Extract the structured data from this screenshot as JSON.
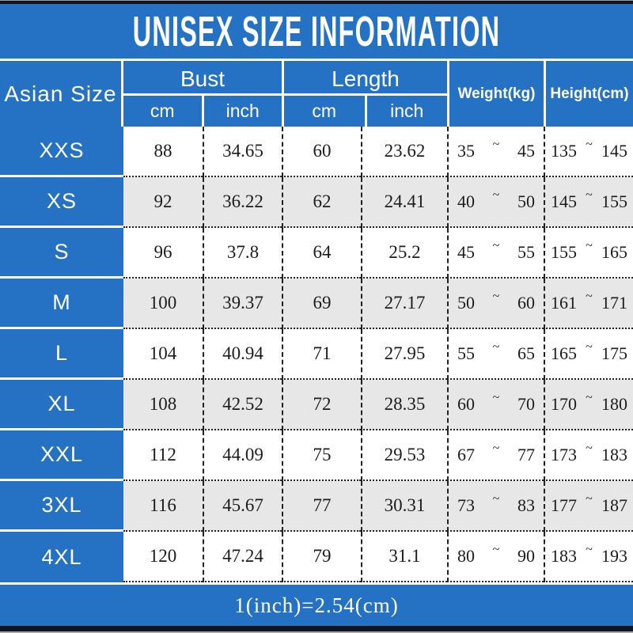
{
  "title": "UNISEX SIZE INFORMATION",
  "header": {
    "size_col": "Asian Size",
    "bust": "Bust",
    "length": "Length",
    "cm": "cm",
    "inch": "inch",
    "weight": "Weight(kg)",
    "height": "Height(cm)"
  },
  "tilde": "~",
  "footer": {
    "formula": "1(inch)=2.54(cm)"
  },
  "colors": {
    "accent_blue": "#2572c4",
    "alt_row_gray": "#e7e7e7",
    "row_white": "#ffffff",
    "divider_dark": "#222222",
    "text_white": "#ffffff",
    "edge_bar_dark": "#14141d"
  },
  "chart_data": {
    "type": "table",
    "title": "UNISEX SIZE INFORMATION",
    "columns": [
      "Asian Size",
      "Bust cm",
      "Bust inch",
      "Length cm",
      "Length inch",
      "Weight(kg)",
      "Height(cm)"
    ],
    "rows": [
      {
        "size": "XXS",
        "bust_cm": "88",
        "bust_inch": "34.65",
        "length_cm": "60",
        "length_inch": "23.62",
        "weight_min": "35",
        "weight_max": "45",
        "height_min": "135",
        "height_max": "145"
      },
      {
        "size": "XS",
        "bust_cm": "92",
        "bust_inch": "36.22",
        "length_cm": "62",
        "length_inch": "24.41",
        "weight_min": "40",
        "weight_max": "50",
        "height_min": "145",
        "height_max": "155"
      },
      {
        "size": "S",
        "bust_cm": "96",
        "bust_inch": "37.8",
        "length_cm": "64",
        "length_inch": "25.2",
        "weight_min": "45",
        "weight_max": "55",
        "height_min": "155",
        "height_max": "165"
      },
      {
        "size": "M",
        "bust_cm": "100",
        "bust_inch": "39.37",
        "length_cm": "69",
        "length_inch": "27.17",
        "weight_min": "50",
        "weight_max": "60",
        "height_min": "161",
        "height_max": "171"
      },
      {
        "size": "L",
        "bust_cm": "104",
        "bust_inch": "40.94",
        "length_cm": "71",
        "length_inch": "27.95",
        "weight_min": "55",
        "weight_max": "65",
        "height_min": "165",
        "height_max": "175"
      },
      {
        "size": "XL",
        "bust_cm": "108",
        "bust_inch": "42.52",
        "length_cm": "72",
        "length_inch": "28.35",
        "weight_min": "60",
        "weight_max": "70",
        "height_min": "170",
        "height_max": "180"
      },
      {
        "size": "XXL",
        "bust_cm": "112",
        "bust_inch": "44.09",
        "length_cm": "75",
        "length_inch": "29.53",
        "weight_min": "67",
        "weight_max": "77",
        "height_min": "173",
        "height_max": "183"
      },
      {
        "size": "3XL",
        "bust_cm": "116",
        "bust_inch": "45.67",
        "length_cm": "77",
        "length_inch": "30.31",
        "weight_min": "73",
        "weight_max": "83",
        "height_min": "177",
        "height_max": "187"
      },
      {
        "size": "4XL",
        "bust_cm": "120",
        "bust_inch": "47.24",
        "length_cm": "79",
        "length_inch": "31.1",
        "weight_min": "80",
        "weight_max": "90",
        "height_min": "183",
        "height_max": "193"
      }
    ],
    "footnote": "1(inch)=2.54(cm)",
    "layout_hints": {
      "alternating_rows": true,
      "first_row_background": "white",
      "header_background": "blue"
    }
  }
}
